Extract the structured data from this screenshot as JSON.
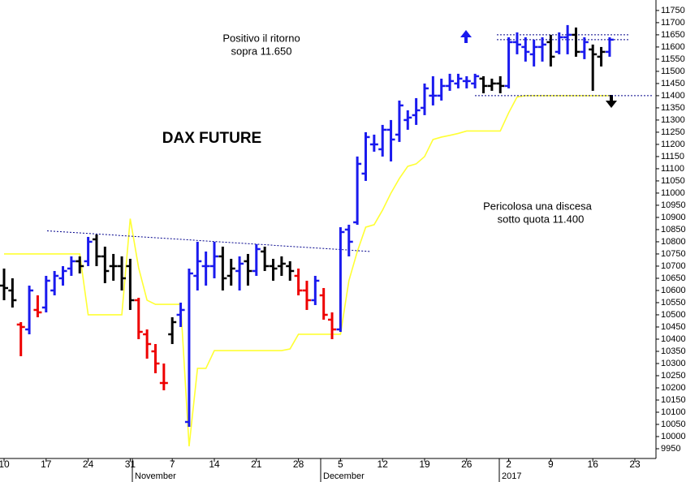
{
  "chart_data": {
    "type": "ohlc",
    "title": "DAX FUTURE",
    "annotations": [
      "Positivo il ritorno",
      "sopra 11.650",
      "Pericolosa una discesa",
      "sotto quota 11.400"
    ],
    "x_month_labels": [
      "November",
      "December",
      "2017"
    ],
    "categories": [
      "10",
      null,
      null,
      null,
      null,
      "17",
      null,
      null,
      null,
      null,
      "24",
      null,
      null,
      null,
      null,
      "31",
      null,
      null,
      null,
      null,
      "7",
      null,
      null,
      null,
      null,
      "14",
      null,
      null,
      null,
      null,
      "21",
      null,
      null,
      null,
      null,
      "28",
      null,
      null,
      null,
      null,
      "5",
      null,
      null,
      null,
      null,
      "12",
      null,
      null,
      null,
      null,
      "19",
      null,
      null,
      null,
      null,
      "26",
      null,
      null,
      null,
      null,
      "2",
      null,
      null,
      null,
      null,
      "9",
      null,
      null,
      null,
      null,
      "16",
      null,
      null,
      null,
      null,
      "23"
    ],
    "open": [
      10620,
      10600,
      10460,
      10440,
      10520,
      10530,
      10600,
      10650,
      10690,
      10720,
      10720,
      10810,
      10740,
      10700,
      10700,
      10700,
      10560,
      10420,
      10350,
      10220,
      10420,
      10500,
      10060,
      10660,
      10700,
      10700,
      10740,
      10660,
      10680,
      10720,
      10680,
      10760,
      10700,
      10700,
      10700,
      10660,
      10600,
      10560,
      10580,
      10480,
      10440,
      10850,
      10880,
      11080,
      11200,
      11180,
      11260,
      11240,
      11300,
      11320,
      11350,
      11400,
      11400,
      11440,
      11450,
      11460,
      11450,
      11470,
      11440,
      11450,
      11440,
      11620,
      11600,
      11570,
      11600,
      11620,
      11580,
      11640,
      11650,
      11580,
      11590,
      11560,
      11580,
      null,
      null,
      null
    ],
    "high": [
      10690,
      10650,
      10470,
      10620,
      10580,
      10660,
      10680,
      10700,
      10740,
      10740,
      10820,
      10830,
      10780,
      10750,
      10740,
      10730,
      10570,
      10440,
      10380,
      10300,
      10490,
      10550,
      10690,
      10800,
      10760,
      10800,
      10780,
      10730,
      10740,
      10750,
      10790,
      10780,
      10730,
      10740,
      10720,
      10690,
      10640,
      10660,
      10610,
      10510,
      10860,
      10870,
      11150,
      11250,
      11240,
      11280,
      11300,
      11380,
      11340,
      11390,
      11450,
      11480,
      11470,
      11490,
      11490,
      11480,
      11490,
      11480,
      11470,
      11480,
      11640,
      11660,
      11640,
      11630,
      11640,
      11650,
      11660,
      11690,
      11680,
      11640,
      11610,
      11600,
      11640,
      null,
      null,
      null
    ],
    "low": [
      10560,
      10530,
      10330,
      10420,
      10490,
      10510,
      10580,
      10620,
      10660,
      10670,
      10700,
      10700,
      10630,
      10640,
      10600,
      10520,
      10400,
      10320,
      10260,
      10190,
      10380,
      10450,
      10040,
      10600,
      10620,
      10650,
      10600,
      10620,
      10600,
      10620,
      10660,
      10680,
      10640,
      10660,
      10640,
      10580,
      10520,
      10540,
      10480,
      10400,
      10430,
      10740,
      10870,
      11050,
      11170,
      11150,
      11130,
      11210,
      11260,
      11280,
      11320,
      11360,
      11380,
      11420,
      11430,
      11430,
      11430,
      11410,
      11420,
      11410,
      11430,
      11570,
      11540,
      11520,
      11540,
      11520,
      11570,
      11570,
      11560,
      11550,
      11420,
      11520,
      11560,
      null,
      null,
      null
    ],
    "close": [
      10610,
      10560,
      10450,
      10600,
      10510,
      10640,
      10660,
      10680,
      10720,
      10700,
      10800,
      10740,
      10680,
      10700,
      10650,
      10560,
      10430,
      10380,
      10300,
      10220,
      10470,
      10520,
      10670,
      10720,
      10700,
      10740,
      10650,
      10690,
      10710,
      10680,
      10770,
      10700,
      10690,
      10710,
      10680,
      10600,
      10560,
      10640,
      10500,
      10440,
      10840,
      10800,
      11120,
      11230,
      11200,
      11260,
      11220,
      11360,
      11310,
      11340,
      11430,
      11400,
      11440,
      11460,
      11470,
      11460,
      11480,
      11440,
      11450,
      11440,
      11620,
      11610,
      11580,
      11600,
      11610,
      11560,
      11640,
      11650,
      11580,
      11620,
      11570,
      11580,
      11630,
      null,
      null,
      null
    ],
    "bar_colors": [
      "#000000",
      "#000000",
      "#ee0000",
      "#1a1aee",
      "#ee0000",
      "#1a1aee",
      "#1a1aee",
      "#1a1aee",
      "#1a1aee",
      "#000000",
      "#1a1aee",
      "#000000",
      "#000000",
      "#000000",
      "#000000",
      "#000000",
      "#ee0000",
      "#ee0000",
      "#ee0000",
      "#ee0000",
      "#000000",
      "#1a1aee",
      "#1a1aee",
      "#1a1aee",
      "#1a1aee",
      "#1a1aee",
      "#000000",
      "#000000",
      "#1a1aee",
      "#000000",
      "#1a1aee",
      "#000000",
      "#000000",
      "#000000",
      "#000000",
      "#ee0000",
      "#ee0000",
      "#1a1aee",
      "#ee0000",
      "#ee0000",
      "#1a1aee",
      "#1a1aee",
      "#1a1aee",
      "#1a1aee",
      "#1a1aee",
      "#1a1aee",
      "#1a1aee",
      "#1a1aee",
      "#1a1aee",
      "#1a1aee",
      "#1a1aee",
      "#1a1aee",
      "#1a1aee",
      "#1a1aee",
      "#1a1aee",
      "#1a1aee",
      "#1a1aee",
      "#000000",
      "#000000",
      "#000000",
      "#1a1aee",
      "#1a1aee",
      "#1a1aee",
      "#1a1aee",
      "#1a1aee",
      "#000000",
      "#1a1aee",
      "#1a1aee",
      "#000000",
      "#1a1aee",
      "#000000",
      "#000000",
      "#1a1aee",
      null,
      null,
      null
    ],
    "stop_line": {
      "color": "#ffff33",
      "values": [
        10750,
        10750,
        10750,
        10750,
        10750,
        10750,
        10750,
        10750,
        10750,
        10750,
        10500,
        10500,
        10500,
        10500,
        10500,
        10895,
        10693,
        10560,
        10543,
        10543,
        10543,
        10543,
        9960,
        10280,
        10280,
        10353,
        10353,
        10353,
        10353,
        10353,
        10353,
        10353,
        10353,
        10353,
        10360,
        10420,
        10420,
        10420,
        10420,
        10420,
        10420,
        10640,
        10760,
        10860,
        10870,
        10930,
        11000,
        11060,
        11110,
        11120,
        11150,
        11220,
        11230,
        11237,
        11245,
        11255,
        11255,
        11255,
        11255,
        11255,
        11330,
        11395,
        11400,
        11400,
        11400,
        11400,
        11400,
        11400,
        11400,
        11400,
        11400,
        11400,
        11400,
        null,
        null,
        null
      ]
    },
    "levels": [
      11650,
      11630,
      11400
    ],
    "level_color": "#00008b",
    "trendline": [
      10845,
      10760
    ],
    "ylim": [
      9910,
      11793
    ],
    "yticks": [
      9950,
      10000,
      10050,
      10100,
      10150,
      10200,
      10250,
      10300,
      10350,
      10400,
      10450,
      10500,
      10550,
      10600,
      10650,
      10700,
      10750,
      10800,
      10850,
      10900,
      10950,
      11000,
      11050,
      11100,
      11150,
      11200,
      11250,
      11300,
      11350,
      11400,
      11450,
      11500,
      11550,
      11600,
      11650,
      11700,
      11750
    ]
  }
}
